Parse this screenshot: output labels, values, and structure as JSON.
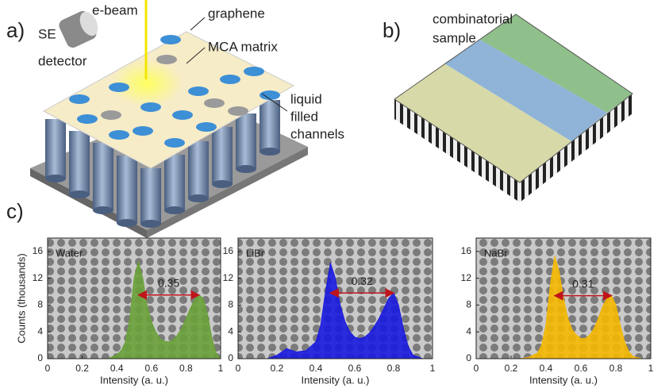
{
  "figure": {
    "panel_labels": [
      "a)",
      "b)",
      "c)"
    ],
    "a": {
      "ebeam": "e-beam",
      "detector": [
        "SE",
        "detector"
      ],
      "graphene": "graphene",
      "matrix": "MCA matrix",
      "channels": [
        "liquid",
        "filled",
        "channels"
      ]
    },
    "b": {
      "sample": [
        "combinatorial",
        "sample"
      ]
    }
  },
  "chart_data": [
    {
      "type": "area",
      "ylabel": "Counts (thousands)",
      "xlabel": "Intensity (a. u.)",
      "annotation": "0.35",
      "x": [
        0.35,
        0.375,
        0.4,
        0.425,
        0.45,
        0.475,
        0.5,
        0.525,
        0.55,
        0.575,
        0.6,
        0.625,
        0.65,
        0.675,
        0.7,
        0.725,
        0.75,
        0.775,
        0.8,
        0.825,
        0.85,
        0.875,
        0.9,
        0.925,
        0.95,
        0.975,
        1
      ],
      "series": [
        {
          "name": "Water",
          "color": "#6aa13a",
          "values": [
            0,
            0.3,
            0.6,
            1.2,
            2.5,
            6,
            12,
            14.5,
            12,
            8,
            5.5,
            4,
            3,
            2.6,
            2.5,
            2.8,
            3.5,
            4.5,
            6,
            7.5,
            8.8,
            9.5,
            9,
            6.5,
            3,
            0.8,
            0
          ]
        }
      ],
      "xlim": [
        0,
        1
      ],
      "ylim": [
        0,
        18
      ],
      "xticks": [
        0,
        0.2,
        0.4,
        0.6,
        0.8,
        1
      ],
      "yticks": [
        0,
        4,
        8,
        12,
        16
      ]
    },
    {
      "type": "area",
      "xlabel": "Intensity (a. u.)",
      "annotation": "0.32",
      "x": [
        0.15,
        0.2,
        0.25,
        0.3,
        0.35,
        0.4,
        0.425,
        0.45,
        0.475,
        0.5,
        0.525,
        0.55,
        0.575,
        0.6,
        0.625,
        0.65,
        0.675,
        0.7,
        0.725,
        0.75,
        0.775,
        0.8,
        0.825,
        0.85,
        0.875,
        0.9,
        0.95
      ],
      "series": [
        {
          "name": "LiBr",
          "color": "#1a1ae0",
          "values": [
            0,
            0.5,
            1.5,
            1,
            1.2,
            2.5,
            5,
            10,
            14.3,
            12,
            8,
            5.5,
            4,
            3.2,
            3,
            3.2,
            3.8,
            4.8,
            6,
            7.5,
            9,
            9.8,
            8,
            4.5,
            1.8,
            0.5,
            0
          ]
        }
      ],
      "xlim": [
        0,
        1
      ],
      "ylim": [
        0,
        18
      ],
      "xticks": [
        0,
        0.2,
        0.4,
        0.6,
        0.8,
        1
      ],
      "yticks": [
        0,
        4,
        8,
        12,
        16
      ]
    },
    {
      "type": "area",
      "xlabel": "Intensity (a. u.)",
      "annotation": "0.31",
      "x": [
        0.25,
        0.3,
        0.35,
        0.375,
        0.4,
        0.425,
        0.45,
        0.475,
        0.5,
        0.525,
        0.55,
        0.575,
        0.6,
        0.625,
        0.65,
        0.675,
        0.7,
        0.725,
        0.75,
        0.775,
        0.8,
        0.825,
        0.85,
        0.875,
        0.9,
        0.95
      ],
      "series": [
        {
          "name": "NaBr",
          "color": "#f5b800",
          "values": [
            0,
            0.2,
            0.8,
            2,
            5,
            11,
            15.3,
            13,
            9,
            6,
            4.3,
            3.5,
            3,
            3,
            3.5,
            4.5,
            6,
            7.8,
            9,
            9.4,
            8,
            5,
            2.5,
            1,
            0.3,
            0
          ]
        }
      ],
      "xlim": [
        0,
        1
      ],
      "ylim": [
        0,
        18
      ],
      "xticks": [
        0,
        0.2,
        0.4,
        0.6,
        0.8,
        1
      ],
      "yticks": [
        0,
        4,
        8,
        12,
        16
      ]
    }
  ]
}
